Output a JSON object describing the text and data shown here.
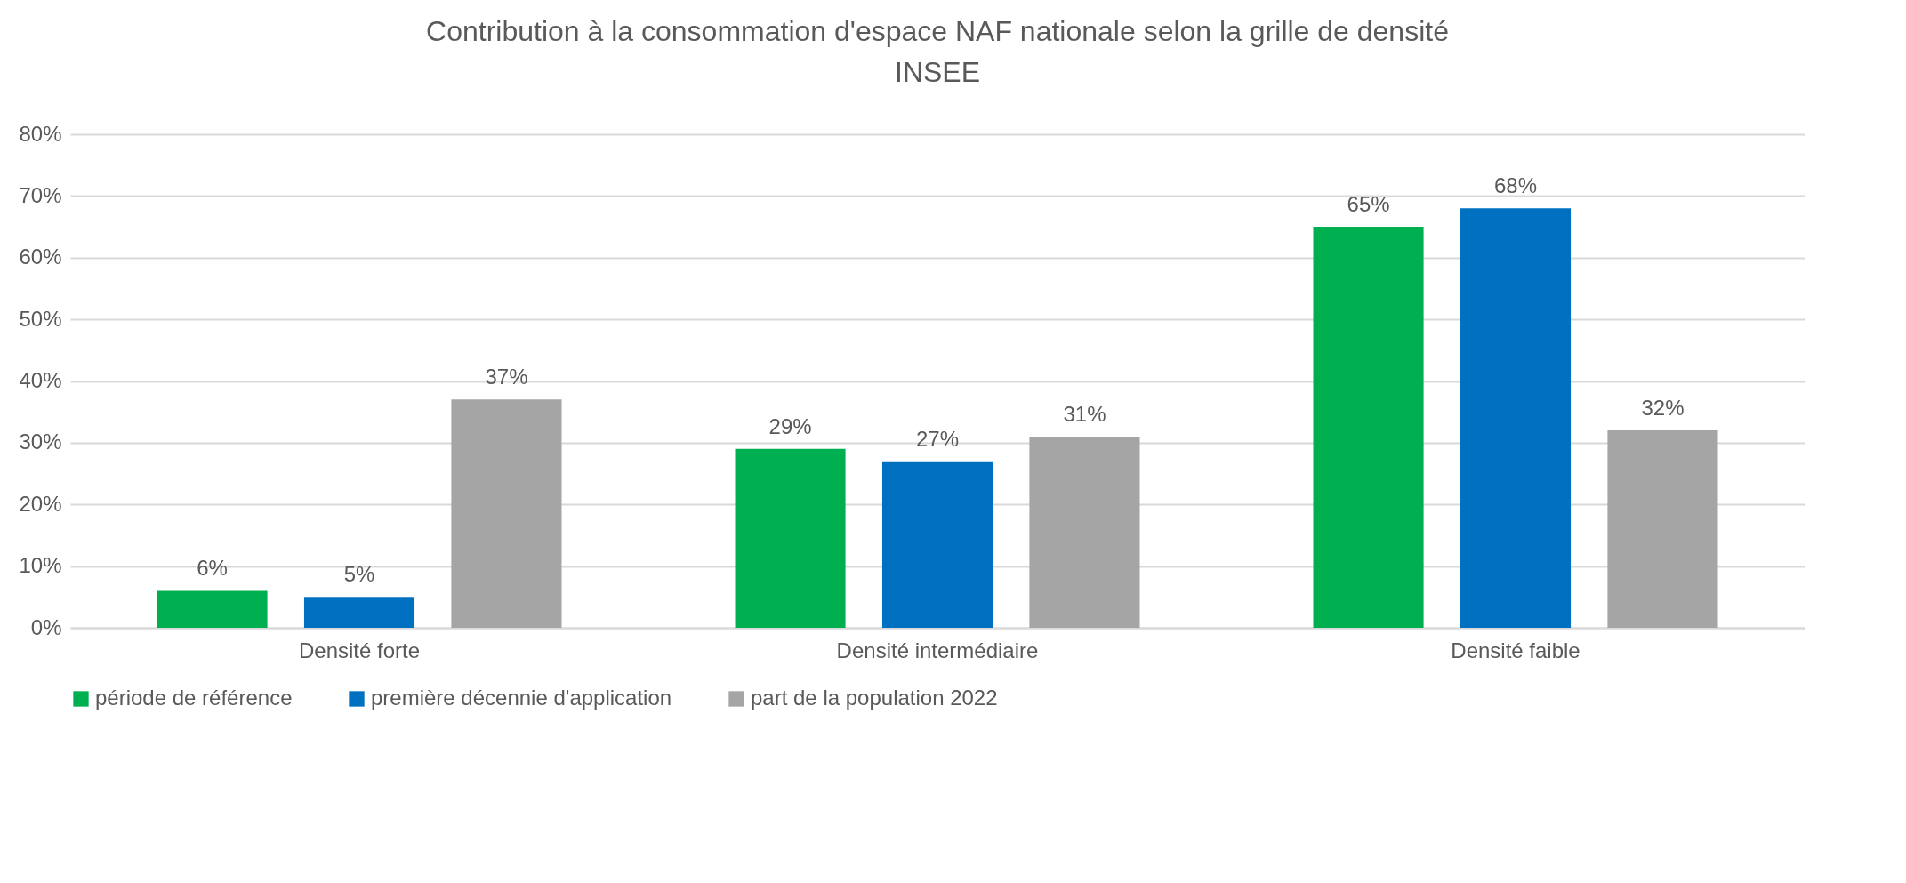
{
  "chart_data": {
    "type": "bar",
    "title": "Contribution à la consommation d'espace NAF nationale selon la grille de densité INSEE",
    "categories": [
      "Densité forte",
      "Densité intermédiaire",
      "Densité faible"
    ],
    "series": [
      {
        "name": "période de référence",
        "color": "#00b050",
        "values": [
          6,
          29,
          65
        ],
        "value_labels": [
          "6%",
          "29%",
          "65%"
        ]
      },
      {
        "name": "première décennie d'application",
        "color": "#0070c0",
        "values": [
          5,
          27,
          68
        ],
        "value_labels": [
          "5%",
          "27%",
          "68%"
        ]
      },
      {
        "name": "part de la population 2022",
        "color": "#a5a5a5",
        "values": [
          37,
          31,
          32
        ],
        "value_labels": [
          "37%",
          "31%",
          "32%"
        ]
      }
    ],
    "ylim": [
      0,
      80
    ],
    "yticks": [
      {
        "value": 0,
        "label": "0%"
      },
      {
        "value": 10,
        "label": "10%"
      },
      {
        "value": 20,
        "label": "20%"
      },
      {
        "value": 30,
        "label": "30%"
      },
      {
        "value": 40,
        "label": "40%"
      },
      {
        "value": 50,
        "label": "50%"
      },
      {
        "value": 60,
        "label": "60%"
      },
      {
        "value": 70,
        "label": "70%"
      },
      {
        "value": 80,
        "label": "80%"
      }
    ],
    "grid": "y",
    "legend": "bottom"
  }
}
